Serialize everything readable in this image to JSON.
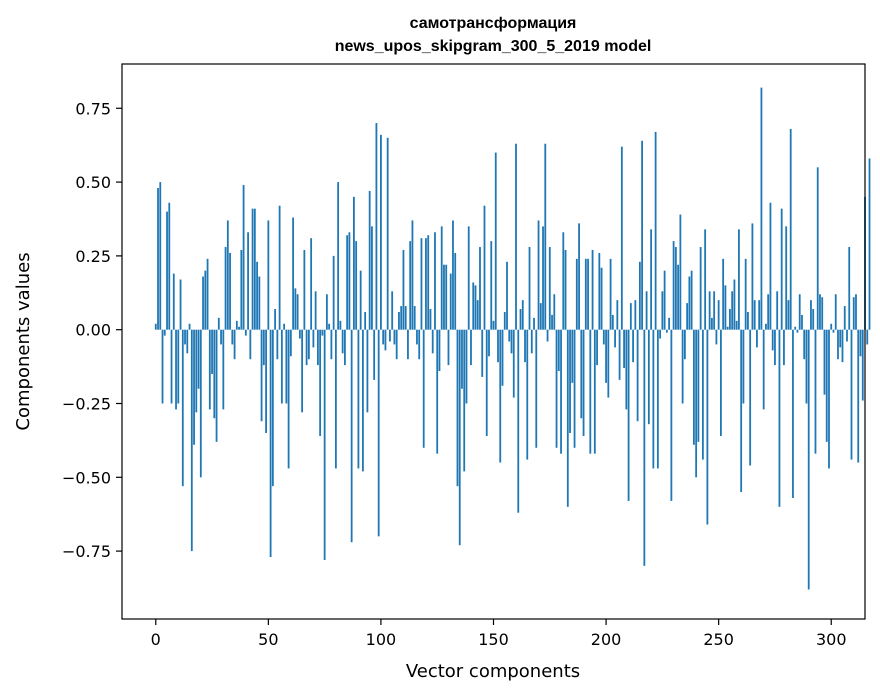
{
  "chart_data": {
    "type": "bar",
    "title": "самотрансформация",
    "subtitle": "news_upos_skipgram_300_5_2019 model",
    "xlabel": "Vector components",
    "ylabel": "Components values",
    "xlim": [
      -15,
      315
    ],
    "ylim": [
      -0.98,
      0.9
    ],
    "xticks": [
      0,
      50,
      100,
      150,
      200,
      250,
      300
    ],
    "yticks": [
      -0.75,
      -0.5,
      -0.25,
      0.0,
      0.25,
      0.5,
      0.75
    ],
    "xtick_labels": [
      "0",
      "50",
      "100",
      "150",
      "200",
      "250",
      "300"
    ],
    "ytick_labels": [
      "−0.75",
      "−0.50",
      "−0.25",
      "0.00",
      "0.25",
      "0.50",
      "0.75"
    ],
    "grid": false,
    "color": "#1f77b4",
    "values": [
      0.02,
      0.48,
      0.5,
      -0.25,
      -0.02,
      0.4,
      0.43,
      -0.25,
      0.19,
      -0.27,
      -0.25,
      0.17,
      -0.53,
      -0.05,
      -0.08,
      0.02,
      -0.75,
      -0.39,
      -0.28,
      -0.2,
      -0.5,
      0.18,
      0.2,
      0.24,
      -0.27,
      -0.15,
      -0.3,
      -0.38,
      0.04,
      -0.05,
      -0.27,
      0.28,
      0.37,
      0.26,
      -0.05,
      -0.1,
      0.03,
      0.01,
      0.27,
      0.49,
      -0.02,
      0.33,
      -0.1,
      0.41,
      0.41,
      0.23,
      0.18,
      -0.31,
      -0.12,
      -0.35,
      0.37,
      -0.77,
      -0.53,
      0.07,
      -0.1,
      0.42,
      -0.25,
      0.02,
      -0.25,
      -0.47,
      -0.09,
      0.38,
      0.14,
      0.12,
      -0.03,
      -0.28,
      0.27,
      -0.12,
      -0.1,
      0.31,
      -0.06,
      0.13,
      -0.12,
      -0.36,
      -0.02,
      -0.78,
      0.12,
      0.02,
      -0.1,
      0.25,
      -0.47,
      0.5,
      0.03,
      -0.08,
      -0.12,
      0.32,
      0.33,
      -0.72,
      0.45,
      0.3,
      -0.47,
      0.2,
      -0.48,
      0.06,
      -0.28,
      0.47,
      0.35,
      -0.17,
      0.7,
      -0.7,
      0.66,
      -0.05,
      -0.07,
      0.65,
      -0.04,
      0.13,
      -0.05,
      -0.1,
      0.06,
      0.08,
      0.27,
      0.08,
      -0.1,
      0.3,
      0.37,
      0.08,
      -0.05,
      -0.1,
      0.31,
      -0.4,
      0.31,
      0.32,
      0.07,
      -0.08,
      0.33,
      -0.42,
      -0.14,
      0.35,
      0.22,
      0.22,
      -0.12,
      0.19,
      0.37,
      0.26,
      -0.53,
      -0.73,
      -0.2,
      -0.48,
      -0.25,
      0.35,
      -0.12,
      0.16,
      0.15,
      0.1,
      0.28,
      -0.16,
      0.42,
      -0.36,
      -0.09,
      0.3,
      0.03,
      0.6,
      -0.11,
      -0.45,
      -0.19,
      0.06,
      0.23,
      -0.04,
      -0.08,
      -0.23,
      0.63,
      -0.62,
      0.07,
      0.1,
      -0.11,
      -0.44,
      0.28,
      -0.08,
      0.04,
      -0.4,
      0.37,
      0.09,
      0.35,
      0.63,
      -0.04,
      0.28,
      0.05,
      0.12,
      -0.4,
      -0.14,
      -0.42,
      0.33,
      0.27,
      -0.6,
      -0.35,
      -0.18,
      -0.4,
      0.24,
      0.36,
      -0.3,
      -0.36,
      0.24,
      0.24,
      -0.42,
      0.27,
      -0.42,
      -0.12,
      0.26,
      0.21,
      -0.05,
      -0.18,
      -0.23,
      0.24,
      0.05,
      -0.06,
      0.1,
      -0.17,
      0.62,
      -0.13,
      -0.27,
      -0.58,
      0.09,
      -0.11,
      0.1,
      -0.31,
      0.23,
      0.64,
      -0.8,
      0.13,
      -0.32,
      0.34,
      -0.47,
      0.67,
      -0.47,
      -0.03,
      0.13,
      0.2,
      -0.01,
      0.04,
      -0.58,
      0.3,
      0.28,
      0.22,
      0.39,
      -0.25,
      -0.1,
      0.09,
      0.18,
      0.2,
      -0.39,
      -0.5,
      -0.38,
      0.28,
      -0.44,
      0.34,
      -0.66,
      0.13,
      0.04,
      0.13,
      -0.05,
      0.1,
      -0.36,
      0.24,
      0.15,
      0.01,
      0.07,
      0.13,
      0.17,
      0.03,
      0.34,
      -0.55,
      -0.25,
      0.24,
      0.06,
      -0.46,
      0.36,
      0.1,
      -0.06,
      0.1,
      0.82,
      -0.27,
      0.02,
      0.12,
      0.43,
      -0.07,
      -0.12,
      0.13,
      -0.6,
      0.41,
      -0.12,
      0.35,
      0.1,
      0.68,
      -0.57,
      0.01,
      -0.01,
      0.12,
      0.05,
      -0.1,
      -0.25,
      -0.88,
      0.1,
      0.07,
      -0.42,
      0.55,
      0.12,
      0.11,
      -0.22,
      -0.38,
      -0.47,
      0.02,
      -0.01,
      0.12,
      -0.1,
      -0.06,
      -0.11,
      0.08,
      -0.04,
      0.28,
      -0.44,
      0.11,
      0.12,
      -0.45,
      -0.09,
      -0.24,
      0.45,
      -0.05,
      0.58
    ]
  }
}
